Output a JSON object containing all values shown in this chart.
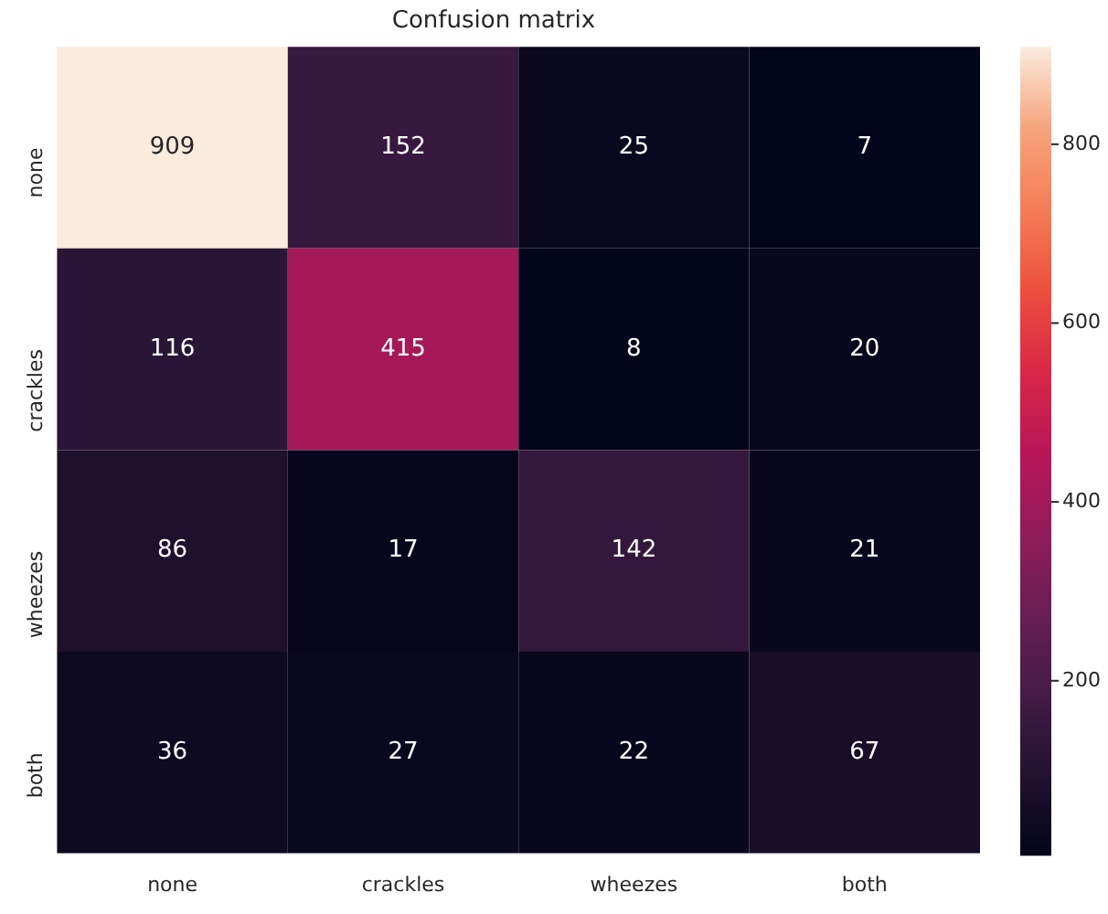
{
  "chart_data": {
    "type": "heatmap",
    "title": "Confusion matrix",
    "categories": [
      "none",
      "crackles",
      "wheezes",
      "both"
    ],
    "y_categories": [
      "none",
      "crackles",
      "wheezes",
      "both"
    ],
    "cells": [
      [
        909,
        152,
        25,
        7
      ],
      [
        116,
        415,
        8,
        20
      ],
      [
        86,
        17,
        142,
        21
      ],
      [
        36,
        27,
        22,
        67
      ]
    ],
    "clim": [
      7,
      909
    ],
    "cticks": [
      200,
      400,
      600,
      800
    ],
    "data_labels": true
  }
}
